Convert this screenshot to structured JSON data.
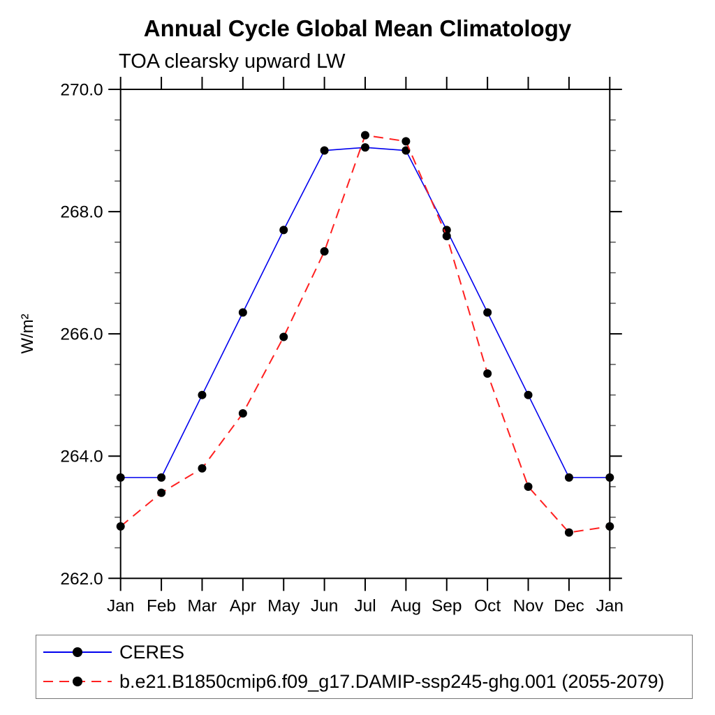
{
  "chart_data": {
    "type": "line",
    "title": "Annual Cycle Global Mean Climatology",
    "subtitle": "TOA clearsky upward LW",
    "ylabel": "W/m²",
    "xlabel": "",
    "categories": [
      "Jan",
      "Feb",
      "Mar",
      "Apr",
      "May",
      "Jun",
      "Jul",
      "Aug",
      "Sep",
      "Oct",
      "Nov",
      "Dec",
      "Jan"
    ],
    "ylim": [
      262.0,
      270.0
    ],
    "y_major_step": 2.0,
    "y_minor_step": 0.5,
    "y_major_tick_labels": [
      "262.0",
      "264.0",
      "266.0",
      "268.0",
      "270.0"
    ],
    "grid": "off",
    "legend_position": "bottom",
    "marker_color": "#000000",
    "series": [
      {
        "name": "CERES",
        "line_style": "solid",
        "color": "#0000ee",
        "values": [
          263.65,
          263.65,
          265.0,
          266.35,
          267.7,
          269.0,
          269.05,
          269.0,
          267.7,
          266.35,
          265.0,
          263.65,
          263.65
        ]
      },
      {
        "name": "b.e21.B1850cmip6.f09_g17.DAMIP-ssp245-ghg.001 (2055-2079)",
        "line_style": "dashed",
        "color": "#ff2020",
        "values": [
          262.85,
          263.4,
          263.8,
          264.7,
          265.95,
          267.35,
          269.25,
          269.15,
          267.6,
          265.35,
          263.5,
          262.75,
          262.85
        ]
      }
    ]
  }
}
